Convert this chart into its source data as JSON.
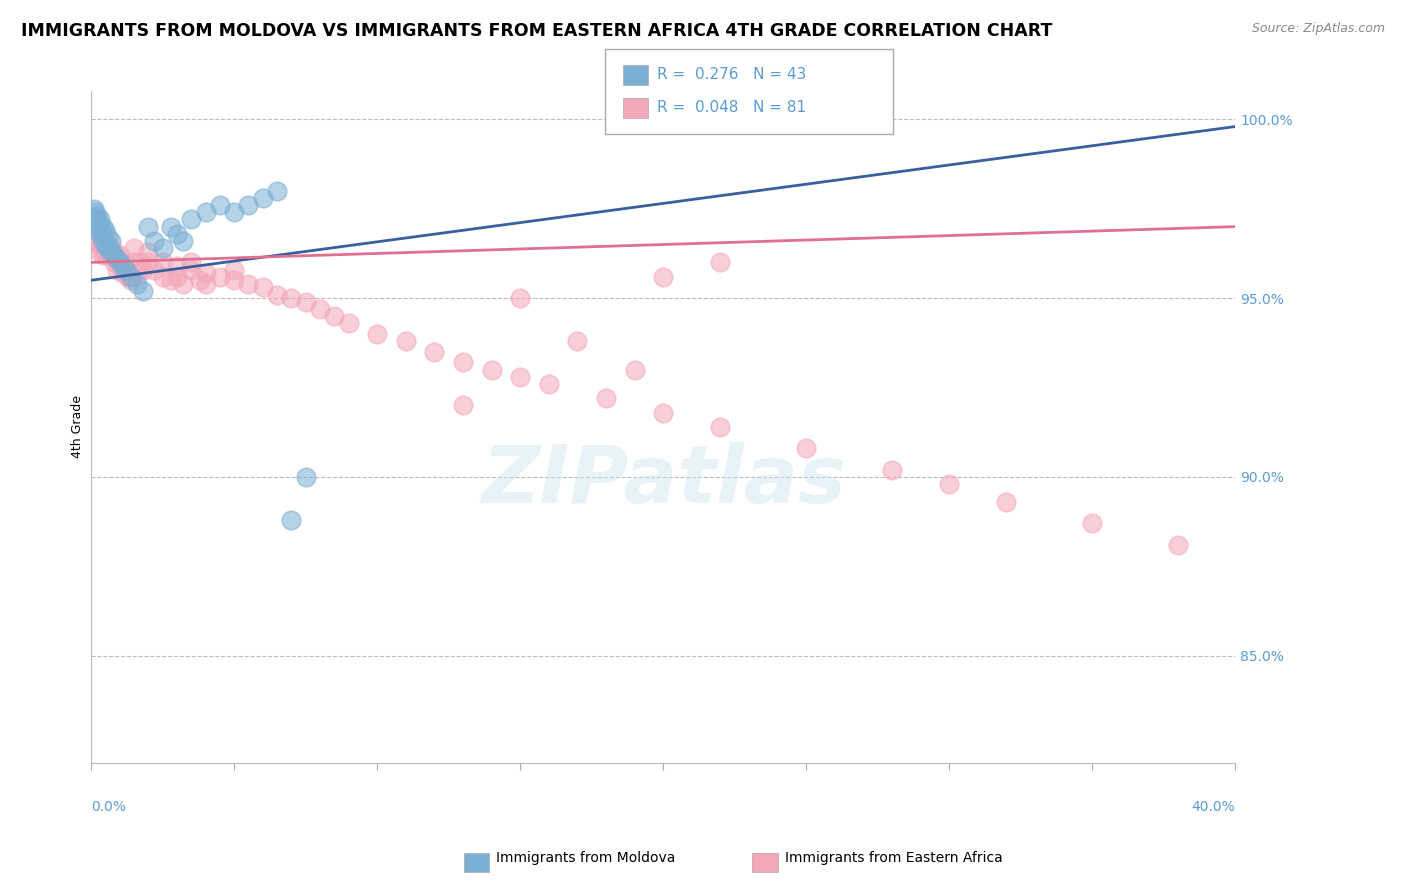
{
  "title": "IMMIGRANTS FROM MOLDOVA VS IMMIGRANTS FROM EASTERN AFRICA 4TH GRADE CORRELATION CHART",
  "source": "Source: ZipAtlas.com",
  "ylabel": "4th Grade",
  "moldova_color": "#7bafd4",
  "eastern_africa_color": "#f4a7b9",
  "moldova_line_color": "#3a5fa0",
  "eastern_africa_line_color": "#e07090",
  "xlim": [
    0.0,
    0.4
  ],
  "ylim": [
    0.82,
    1.008
  ],
  "background_color": "#ffffff",
  "watermark": "ZIPatlas",
  "title_fontsize": 12.5,
  "axis_label_fontsize": 9,
  "tick_fontsize": 10,
  "moldova_scatter": {
    "x": [
      0.001,
      0.001,
      0.0015,
      0.0015,
      0.002,
      0.002,
      0.002,
      0.0025,
      0.003,
      0.003,
      0.003,
      0.004,
      0.004,
      0.004,
      0.005,
      0.005,
      0.006,
      0.006,
      0.007,
      0.007,
      0.008,
      0.009,
      0.01,
      0.011,
      0.012,
      0.014,
      0.016,
      0.018,
      0.02,
      0.022,
      0.025,
      0.028,
      0.03,
      0.032,
      0.035,
      0.04,
      0.045,
      0.05,
      0.055,
      0.06,
      0.065,
      0.07,
      0.075
    ],
    "y": [
      0.975,
      0.972,
      0.971,
      0.974,
      0.973,
      0.97,
      0.972,
      0.971,
      0.97,
      0.968,
      0.972,
      0.968,
      0.97,
      0.966,
      0.969,
      0.965,
      0.967,
      0.964,
      0.966,
      0.963,
      0.962,
      0.961,
      0.96,
      0.959,
      0.958,
      0.956,
      0.954,
      0.952,
      0.97,
      0.966,
      0.964,
      0.97,
      0.968,
      0.966,
      0.972,
      0.974,
      0.976,
      0.974,
      0.976,
      0.978,
      0.98,
      0.888,
      0.9
    ]
  },
  "eastern_africa_scatter": {
    "x": [
      0.0005,
      0.001,
      0.001,
      0.0015,
      0.002,
      0.002,
      0.0025,
      0.003,
      0.003,
      0.003,
      0.004,
      0.004,
      0.004,
      0.005,
      0.005,
      0.006,
      0.006,
      0.007,
      0.007,
      0.008,
      0.008,
      0.009,
      0.009,
      0.01,
      0.01,
      0.011,
      0.012,
      0.013,
      0.014,
      0.015,
      0.015,
      0.016,
      0.017,
      0.018,
      0.02,
      0.02,
      0.022,
      0.025,
      0.025,
      0.028,
      0.03,
      0.03,
      0.032,
      0.035,
      0.035,
      0.038,
      0.04,
      0.04,
      0.045,
      0.05,
      0.05,
      0.055,
      0.06,
      0.065,
      0.07,
      0.075,
      0.08,
      0.085,
      0.09,
      0.1,
      0.11,
      0.12,
      0.13,
      0.14,
      0.15,
      0.16,
      0.18,
      0.2,
      0.22,
      0.25,
      0.28,
      0.3,
      0.32,
      0.35,
      0.38,
      0.15,
      0.2,
      0.22,
      0.17,
      0.19,
      0.13
    ],
    "y": [
      0.972,
      0.971,
      0.969,
      0.968,
      0.967,
      0.97,
      0.966,
      0.965,
      0.968,
      0.963,
      0.965,
      0.962,
      0.967,
      0.963,
      0.966,
      0.962,
      0.965,
      0.962,
      0.964,
      0.96,
      0.963,
      0.958,
      0.961,
      0.959,
      0.962,
      0.957,
      0.958,
      0.956,
      0.955,
      0.96,
      0.964,
      0.957,
      0.96,
      0.958,
      0.96,
      0.963,
      0.958,
      0.956,
      0.96,
      0.955,
      0.956,
      0.959,
      0.954,
      0.958,
      0.96,
      0.955,
      0.957,
      0.954,
      0.956,
      0.955,
      0.958,
      0.954,
      0.953,
      0.951,
      0.95,
      0.949,
      0.947,
      0.945,
      0.943,
      0.94,
      0.938,
      0.935,
      0.932,
      0.93,
      0.928,
      0.926,
      0.922,
      0.918,
      0.914,
      0.908,
      0.902,
      0.898,
      0.893,
      0.887,
      0.881,
      0.95,
      0.956,
      0.96,
      0.938,
      0.93,
      0.92
    ]
  },
  "moldova_trendline": {
    "x": [
      0.0,
      0.4
    ],
    "y": [
      0.955,
      0.998
    ]
  },
  "eastern_africa_trendline": {
    "x": [
      0.0,
      0.4
    ],
    "y": [
      0.96,
      0.97
    ]
  },
  "right_yticks": [
    1.0,
    0.95,
    0.9,
    0.85
  ],
  "right_yticklabels": [
    "100.0%",
    "95.0%",
    "90.0%",
    "85.0%"
  ]
}
